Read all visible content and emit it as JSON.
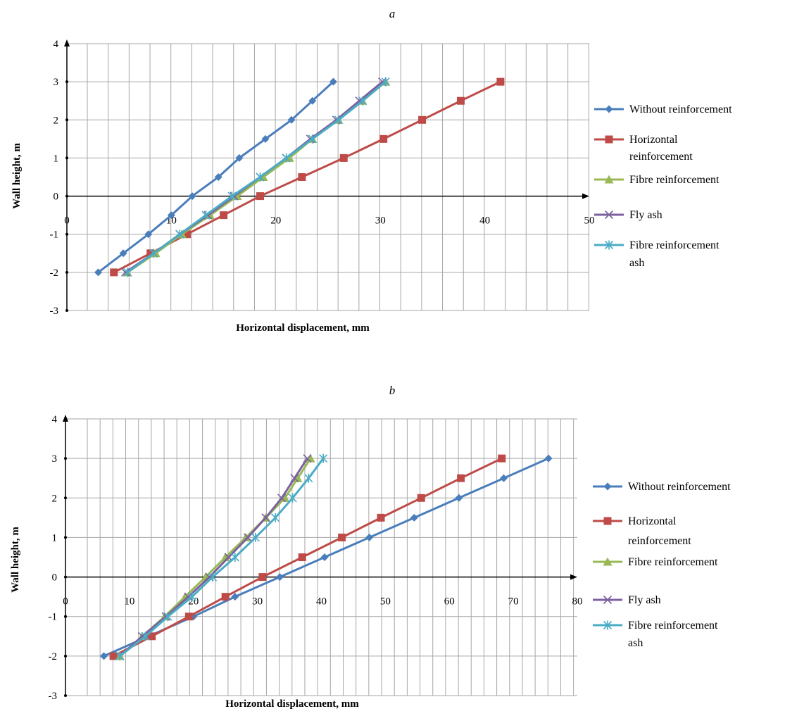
{
  "chart_data": [
    {
      "id": "a",
      "type": "line",
      "panel_label": "a",
      "xlabel": "Horizontal displacement, mm",
      "ylabel": "Wall height, m",
      "xlim": [
        0,
        50
      ],
      "ylim": [
        -3,
        4
      ],
      "x_ticks": [
        0,
        10,
        20,
        30,
        40,
        50
      ],
      "y_ticks": [
        -3,
        -2,
        -1,
        0,
        1,
        2,
        3,
        4
      ],
      "grid": true,
      "legend_position": "right",
      "series": [
        {
          "name": "Without reinforcement",
          "label_lines": [
            "Without reinforcement"
          ],
          "color": "#4a7ebb",
          "marker": "diamond",
          "points": [
            [
              3,
              -2
            ],
            [
              5.4,
              -1.5
            ],
            [
              7.8,
              -1
            ],
            [
              10,
              -0.5
            ],
            [
              12,
              0
            ],
            [
              14.5,
              0.5
            ],
            [
              16.5,
              1
            ],
            [
              19,
              1.5
            ],
            [
              21.5,
              2
            ],
            [
              23.5,
              2.5
            ],
            [
              25.5,
              3
            ]
          ]
        },
        {
          "name": "Horizontal reinforcement",
          "label_lines": [
            "Horizontal",
            "reinforcement"
          ],
          "color": "#be4b48",
          "marker": "square",
          "points": [
            [
              4.5,
              -2
            ],
            [
              8,
              -1.5
            ],
            [
              11.5,
              -1
            ],
            [
              15,
              -0.5
            ],
            [
              18.5,
              0
            ],
            [
              22.5,
              0.5
            ],
            [
              26.5,
              1
            ],
            [
              30.3,
              1.5
            ],
            [
              34,
              2
            ],
            [
              37.7,
              2.5
            ],
            [
              41.5,
              3
            ]
          ]
        },
        {
          "name": "Fibre reinforcement",
          "label_lines": [
            "Fibre reinforcement"
          ],
          "color": "#98b954",
          "marker": "triangle",
          "points": [
            [
              5.8,
              -2
            ],
            [
              8.5,
              -1.5
            ],
            [
              11,
              -1
            ],
            [
              13.7,
              -0.5
            ],
            [
              16.3,
              0
            ],
            [
              18.8,
              0.5
            ],
            [
              21.3,
              1
            ],
            [
              23.5,
              1.5
            ],
            [
              26,
              2
            ],
            [
              28.3,
              2.5
            ],
            [
              30.5,
              3
            ]
          ]
        },
        {
          "name": "Fly ash",
          "label_lines": [
            "Fly ash"
          ],
          "color": "#7d60a0",
          "marker": "x",
          "points": [
            [
              5.6,
              -2
            ],
            [
              8.3,
              -1.5
            ],
            [
              10.8,
              -1
            ],
            [
              13.5,
              -0.5
            ],
            [
              16,
              0
            ],
            [
              18.5,
              0.5
            ],
            [
              21,
              1
            ],
            [
              23.3,
              1.5
            ],
            [
              25.8,
              2
            ],
            [
              28,
              2.5
            ],
            [
              30.2,
              3
            ]
          ]
        },
        {
          "name": "Fibre reinforcement ash",
          "label_lines": [
            "Fibre reinforcement",
            "ash"
          ],
          "color": "#4bacc6",
          "marker": "star",
          "points": [
            [
              5.8,
              -2
            ],
            [
              8.3,
              -1.5
            ],
            [
              10.8,
              -1
            ],
            [
              13.3,
              -0.5
            ],
            [
              15.8,
              0
            ],
            [
              18.5,
              0.5
            ],
            [
              21,
              1
            ],
            [
              23.5,
              1.5
            ],
            [
              26,
              2
            ],
            [
              28.3,
              2.5
            ],
            [
              30.5,
              3
            ]
          ]
        }
      ]
    },
    {
      "id": "b",
      "type": "line",
      "panel_label": "b",
      "xlabel": "Horizontal displacement, mm",
      "ylabel": "Wall height, m",
      "xlim": [
        0,
        80
      ],
      "ylim": [
        -3,
        4
      ],
      "x_ticks": [
        0,
        10,
        20,
        30,
        40,
        50,
        60,
        70,
        80
      ],
      "y_ticks": [
        -3,
        -2,
        -1,
        0,
        1,
        2,
        3,
        4
      ],
      "grid": true,
      "legend_position": "right",
      "series": [
        {
          "name": "Without reinforcement",
          "label_lines": [
            "Without reinforcement"
          ],
          "color": "#4a7ebb",
          "marker": "diamond",
          "points": [
            [
              6,
              -2
            ],
            [
              13,
              -1.5
            ],
            [
              20,
              -1
            ],
            [
              26.5,
              -0.5
            ],
            [
              33.5,
              0
            ],
            [
              40.5,
              0.5
            ],
            [
              47.5,
              1
            ],
            [
              54.5,
              1.5
            ],
            [
              61.5,
              2
            ],
            [
              68.5,
              2.5
            ],
            [
              75.5,
              3
            ]
          ]
        },
        {
          "name": "Horizontal reinforcement",
          "label_lines": [
            "Horizontal",
            "reinforcement"
          ],
          "color": "#be4b48",
          "marker": "square",
          "points": [
            [
              7.5,
              -2
            ],
            [
              13.5,
              -1.5
            ],
            [
              19.3,
              -1
            ],
            [
              25,
              -0.5
            ],
            [
              30.8,
              0
            ],
            [
              37,
              0.5
            ],
            [
              43.2,
              1
            ],
            [
              49.3,
              1.5
            ],
            [
              55.6,
              2
            ],
            [
              61.8,
              2.5
            ],
            [
              68.2,
              3
            ]
          ]
        },
        {
          "name": "Fibre reinforcement",
          "label_lines": [
            "Fibre reinforcement"
          ],
          "color": "#98b954",
          "marker": "triangle",
          "points": [
            [
              8.5,
              -2
            ],
            [
              12,
              -1.5
            ],
            [
              15.5,
              -1
            ],
            [
              18.7,
              -0.5
            ],
            [
              21.9,
              0
            ],
            [
              25,
              0.5
            ],
            [
              28.2,
              1
            ],
            [
              31.3,
              1.5
            ],
            [
              34.3,
              2
            ],
            [
              36.3,
              2.5
            ],
            [
              38.3,
              3
            ]
          ]
        },
        {
          "name": "Fly ash",
          "label_lines": [
            "Fly ash"
          ],
          "color": "#7d60a0",
          "marker": "x",
          "points": [
            [
              8.5,
              -2
            ],
            [
              12,
              -1.5
            ],
            [
              15.7,
              -1
            ],
            [
              19.2,
              -0.5
            ],
            [
              22.5,
              0
            ],
            [
              25.5,
              0.5
            ],
            [
              28.5,
              1
            ],
            [
              31.3,
              1.5
            ],
            [
              33.8,
              2
            ],
            [
              35.8,
              2.5
            ],
            [
              37.8,
              3
            ]
          ]
        },
        {
          "name": "Fibre reinforcement ash",
          "label_lines": [
            "Fibre reinforcement",
            "ash"
          ],
          "color": "#4bacc6",
          "marker": "star",
          "points": [
            [
              8.5,
              -2
            ],
            [
              12.5,
              -1.5
            ],
            [
              16,
              -1
            ],
            [
              19.8,
              -0.5
            ],
            [
              23,
              0
            ],
            [
              26.5,
              0.5
            ],
            [
              29.7,
              1
            ],
            [
              32.8,
              1.5
            ],
            [
              35.5,
              2
            ],
            [
              38,
              2.5
            ],
            [
              40.3,
              3
            ]
          ]
        }
      ]
    }
  ]
}
